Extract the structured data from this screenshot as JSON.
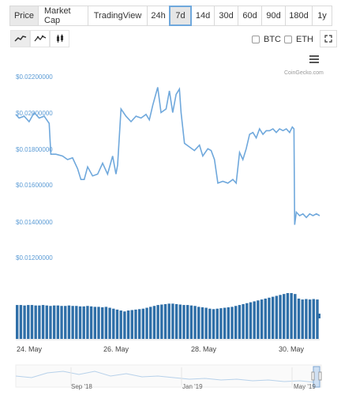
{
  "view_tabs": [
    {
      "label": "Price",
      "active": true
    },
    {
      "label": "Market Cap",
      "active": false
    },
    {
      "label": "TradingView",
      "active": false
    }
  ],
  "range_tabs": [
    {
      "label": "24h",
      "selected": false
    },
    {
      "label": "7d",
      "selected": true
    },
    {
      "label": "14d",
      "selected": false
    },
    {
      "label": "30d",
      "selected": false
    },
    {
      "label": "60d",
      "selected": false
    },
    {
      "label": "90d",
      "selected": false
    },
    {
      "label": "180d",
      "selected": false
    },
    {
      "label": "1y",
      "selected": false
    }
  ],
  "chart_tools": [
    "line-chart-icon",
    "area-chart-icon",
    "candlestick-icon"
  ],
  "compare": [
    {
      "label": "BTC",
      "checked": false
    },
    {
      "label": "ETH",
      "checked": false
    }
  ],
  "credit": "CoinGecko.com",
  "colors": {
    "line": "#6fa8dc",
    "volume": "#2f6fa8",
    "axis_label": "#5b9bd5"
  },
  "chart_data": {
    "type": "line",
    "y_tick_labels": [
      "$0.02200000",
      "$0.02000000",
      "$0.01800000",
      "$0.01600000",
      "$0.01400000",
      "$0.01200000"
    ],
    "ylim": [
      0.011,
      0.023
    ],
    "x_tick_labels": [
      "24. May",
      "26. May",
      "28. May",
      "30. May"
    ],
    "price": [
      {
        "x": 0.0,
        "y": 0.02
      },
      {
        "x": 0.1,
        "y": 0.0198
      },
      {
        "x": 0.25,
        "y": 0.0199
      },
      {
        "x": 0.4,
        "y": 0.0196
      },
      {
        "x": 0.55,
        "y": 0.0201
      },
      {
        "x": 0.7,
        "y": 0.0198
      },
      {
        "x": 0.85,
        "y": 0.0199
      },
      {
        "x": 1.0,
        "y": 0.0195
      },
      {
        "x": 1.05,
        "y": 0.0178
      },
      {
        "x": 1.2,
        "y": 0.0178
      },
      {
        "x": 1.4,
        "y": 0.0177
      },
      {
        "x": 1.55,
        "y": 0.0175
      },
      {
        "x": 1.7,
        "y": 0.0176
      },
      {
        "x": 1.85,
        "y": 0.017
      },
      {
        "x": 1.95,
        "y": 0.0164
      },
      {
        "x": 2.05,
        "y": 0.0164
      },
      {
        "x": 2.15,
        "y": 0.0171
      },
      {
        "x": 2.3,
        "y": 0.0166
      },
      {
        "x": 2.45,
        "y": 0.0167
      },
      {
        "x": 2.6,
        "y": 0.0173
      },
      {
        "x": 2.75,
        "y": 0.0167
      },
      {
        "x": 2.9,
        "y": 0.0177
      },
      {
        "x": 3.0,
        "y": 0.0167
      },
      {
        "x": 3.05,
        "y": 0.0172
      },
      {
        "x": 3.15,
        "y": 0.0203
      },
      {
        "x": 3.3,
        "y": 0.0199
      },
      {
        "x": 3.45,
        "y": 0.0196
      },
      {
        "x": 3.6,
        "y": 0.0199
      },
      {
        "x": 3.75,
        "y": 0.0198
      },
      {
        "x": 3.9,
        "y": 0.02
      },
      {
        "x": 4.0,
        "y": 0.0197
      },
      {
        "x": 4.1,
        "y": 0.0205
      },
      {
        "x": 4.25,
        "y": 0.0215
      },
      {
        "x": 4.35,
        "y": 0.0201
      },
      {
        "x": 4.5,
        "y": 0.0203
      },
      {
        "x": 4.6,
        "y": 0.0213
      },
      {
        "x": 4.7,
        "y": 0.0201
      },
      {
        "x": 4.8,
        "y": 0.0211
      },
      {
        "x": 4.9,
        "y": 0.0214
      },
      {
        "x": 4.95,
        "y": 0.0201
      },
      {
        "x": 5.05,
        "y": 0.0184
      },
      {
        "x": 5.2,
        "y": 0.0182
      },
      {
        "x": 5.35,
        "y": 0.018
      },
      {
        "x": 5.5,
        "y": 0.0183
      },
      {
        "x": 5.6,
        "y": 0.0177
      },
      {
        "x": 5.75,
        "y": 0.0181
      },
      {
        "x": 5.85,
        "y": 0.018
      },
      {
        "x": 5.95,
        "y": 0.0175
      },
      {
        "x": 6.05,
        "y": 0.0162
      },
      {
        "x": 6.2,
        "y": 0.0163
      },
      {
        "x": 6.35,
        "y": 0.0162
      },
      {
        "x": 6.5,
        "y": 0.0164
      },
      {
        "x": 6.6,
        "y": 0.0162
      },
      {
        "x": 6.7,
        "y": 0.0179
      },
      {
        "x": 6.8,
        "y": 0.0175
      },
      {
        "x": 6.9,
        "y": 0.0181
      },
      {
        "x": 7.0,
        "y": 0.0189
      },
      {
        "x": 7.1,
        "y": 0.019
      },
      {
        "x": 7.2,
        "y": 0.0187
      },
      {
        "x": 7.3,
        "y": 0.0192
      },
      {
        "x": 7.4,
        "y": 0.0189
      },
      {
        "x": 7.5,
        "y": 0.0191
      },
      {
        "x": 7.6,
        "y": 0.0191
      },
      {
        "x": 7.7,
        "y": 0.0192
      },
      {
        "x": 7.8,
        "y": 0.019
      },
      {
        "x": 7.9,
        "y": 0.0192
      },
      {
        "x": 8.0,
        "y": 0.0191
      },
      {
        "x": 8.1,
        "y": 0.0192
      },
      {
        "x": 8.2,
        "y": 0.019
      },
      {
        "x": 8.28,
        "y": 0.0193
      },
      {
        "x": 8.33,
        "y": 0.0192
      },
      {
        "x": 8.35,
        "y": 0.0139
      },
      {
        "x": 8.4,
        "y": 0.0146
      },
      {
        "x": 8.5,
        "y": 0.0144
      },
      {
        "x": 8.6,
        "y": 0.0145
      },
      {
        "x": 8.7,
        "y": 0.0143
      },
      {
        "x": 8.8,
        "y": 0.0145
      },
      {
        "x": 8.9,
        "y": 0.0144
      },
      {
        "x": 9.0,
        "y": 0.0145
      },
      {
        "x": 9.1,
        "y": 0.0144
      }
    ],
    "volume_levels": [
      0.74,
      0.74,
      0.73,
      0.74,
      0.74,
      0.73,
      0.73,
      0.74,
      0.73,
      0.72,
      0.73,
      0.73,
      0.72,
      0.72,
      0.73,
      0.72,
      0.72,
      0.71,
      0.71,
      0.72,
      0.71,
      0.7,
      0.7,
      0.69,
      0.7,
      0.68,
      0.66,
      0.64,
      0.62,
      0.6,
      0.62,
      0.63,
      0.64,
      0.65,
      0.66,
      0.68,
      0.7,
      0.72,
      0.74,
      0.75,
      0.76,
      0.77,
      0.77,
      0.76,
      0.75,
      0.74,
      0.74,
      0.73,
      0.72,
      0.7,
      0.69,
      0.68,
      0.66,
      0.65,
      0.66,
      0.67,
      0.68,
      0.69,
      0.7,
      0.72,
      0.74,
      0.76,
      0.78,
      0.8,
      0.82,
      0.84,
      0.86,
      0.88,
      0.9,
      0.92,
      0.94,
      0.96,
      0.98,
      1.0,
      1.0,
      0.98,
      0.88,
      0.86,
      0.87,
      0.86,
      0.87,
      0.86
    ]
  },
  "navigator": {
    "labels": [
      "Sep '18",
      "Jan '19",
      "May '19"
    ]
  }
}
